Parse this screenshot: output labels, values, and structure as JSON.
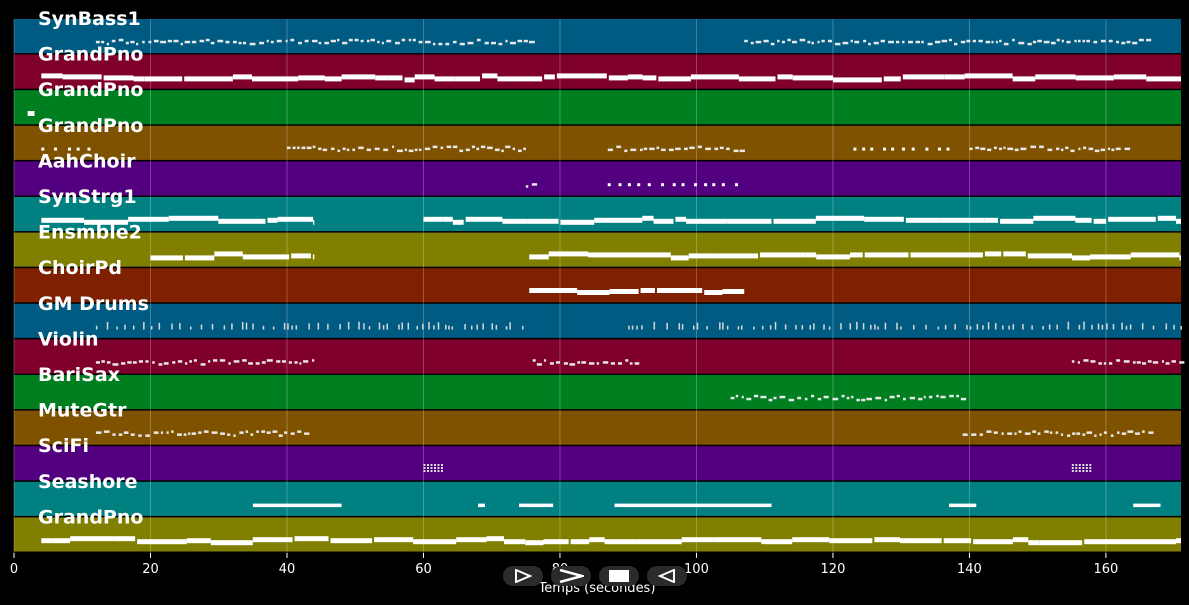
{
  "chart_data": {
    "type": "piano-roll",
    "xlabel": "Temps (secondes)",
    "xlim": [
      0,
      171
    ],
    "xticks": [
      0,
      20,
      40,
      60,
      80,
      100,
      120,
      140,
      160
    ],
    "grid": true,
    "tracks": [
      {
        "name": "SynBass1",
        "color": "#005b82",
        "segments": [
          [
            12,
            75.5,
            "dense"
          ],
          [
            107,
            166,
            "dense"
          ]
        ]
      },
      {
        "name": "GrandPno",
        "color": "#7f002c",
        "segments": [
          [
            4,
            171,
            "thick"
          ]
        ]
      },
      {
        "name": "GrandPno",
        "color": "#007f20",
        "segments": [
          [
            2,
            3,
            "thick"
          ]
        ]
      },
      {
        "name": "GrandPno",
        "color": "#7f5200",
        "segments": [
          [
            4,
            12,
            "sparse"
          ],
          [
            40,
            75,
            "dense"
          ],
          [
            87,
            107,
            "dense"
          ],
          [
            123,
            138,
            "sparse"
          ],
          [
            140,
            163,
            "dense"
          ]
        ]
      },
      {
        "name": "AahChoir",
        "color": "#520080",
        "segments": [
          [
            75,
            77,
            "dense"
          ],
          [
            87,
            107,
            "sparse"
          ]
        ]
      },
      {
        "name": "SynStrg1",
        "color": "#008080",
        "segments": [
          [
            4,
            44,
            "thick"
          ],
          [
            60,
            171,
            "thick"
          ]
        ]
      },
      {
        "name": "Ensmble2",
        "color": "#807f00",
        "segments": [
          [
            20,
            44,
            "thick"
          ],
          [
            75.5,
            171,
            "thick"
          ]
        ]
      },
      {
        "name": "ChoirPd",
        "color": "#7f2000",
        "segments": [
          [
            75.5,
            107,
            "thick"
          ]
        ]
      },
      {
        "name": "GM Drums",
        "color": "#005b82",
        "segments": [
          [
            12,
            75,
            "drums"
          ],
          [
            90,
            171,
            "drums"
          ]
        ]
      },
      {
        "name": "Violin",
        "color": "#7f002c",
        "segments": [
          [
            12,
            44,
            "dense"
          ],
          [
            76,
            91,
            "dense"
          ],
          [
            155,
            171,
            "dense"
          ]
        ]
      },
      {
        "name": "BariSax",
        "color": "#007f20",
        "segments": [
          [
            105,
            139,
            "dense"
          ]
        ]
      },
      {
        "name": "MuteGtr",
        "color": "#7f5200",
        "segments": [
          [
            12,
            43,
            "dense"
          ],
          [
            139,
            167,
            "dense"
          ]
        ]
      },
      {
        "name": "SciFi",
        "color": "#520080",
        "segments": [
          [
            60,
            63,
            "cluster"
          ],
          [
            155,
            158,
            "cluster"
          ]
        ]
      },
      {
        "name": "Seashore",
        "color": "#008080",
        "segments": [
          [
            35,
            48,
            "long"
          ],
          [
            68,
            69,
            "long"
          ],
          [
            74,
            79,
            "long"
          ],
          [
            88,
            111,
            "long"
          ],
          [
            137,
            141,
            "long"
          ],
          [
            164,
            168,
            "long"
          ]
        ]
      },
      {
        "name": "GrandPno",
        "color": "#807f00",
        "segments": [
          [
            4,
            171,
            "thick"
          ]
        ]
      }
    ]
  },
  "player": {
    "play_icon": "play-icon",
    "forward_icon": "forward-icon",
    "stop_icon": "stop-icon",
    "rewind_icon": "rewind-icon"
  }
}
